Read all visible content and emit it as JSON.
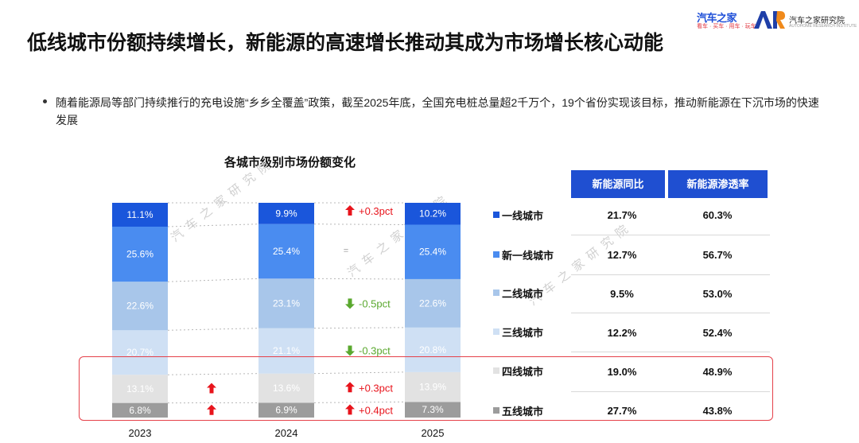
{
  "header": {
    "logo_left_text": "汽车之家",
    "logo_left_sub": "看车 · 买车 · 用车 · 玩车",
    "logo_right_text": "汽车之家研究院",
    "logo_right_sub": "AUTOHOME RESEARCH INSTITUTE"
  },
  "page_title": "低线城市份额持续增长，新能源的高速增长推动其成为市场增长核心动能",
  "bullet": "随着能源局等部门持续推行的充电设施“乡乡全覆盖”政策，截至2025年底，全国充电桩总量超2千万个，19个省份实现该目标，推动新能源在下沉市场的快速发展",
  "watermark": "汽车之家研究院",
  "colors": {
    "tier1": "#1a56db",
    "new_tier1": "#4a8cf0",
    "tier2": "#a8c6ea",
    "tier3": "#cfe0f4",
    "tier4": "#e2e2e2",
    "tier5": "#9c9c9c",
    "header_blue": "#1f4fd1",
    "arrow_up": "#e8141c",
    "arrow_down": "#5aa82e",
    "highlight": "#e5414a"
  },
  "chart_data": {
    "type": "bar",
    "stacked": true,
    "title": "各城市级别市场份额变化",
    "categories": [
      "2023",
      "2024",
      "2025"
    ],
    "series": [
      {
        "name": "一线城市",
        "values": [
          11.1,
          9.9,
          10.2
        ],
        "labels": [
          "11.1%",
          "9.9%",
          "10.2%"
        ],
        "color_key": "tier1"
      },
      {
        "name": "新一线城市",
        "values": [
          25.6,
          25.4,
          25.4
        ],
        "labels": [
          "25.6%",
          "25.4%",
          "25.4%"
        ],
        "color_key": "new_tier1"
      },
      {
        "name": "二线城市",
        "values": [
          22.6,
          23.1,
          22.6
        ],
        "labels": [
          "22.6%",
          "23.1%",
          "22.6%"
        ],
        "color_key": "tier2"
      },
      {
        "name": "三线城市",
        "values": [
          20.7,
          21.1,
          20.8
        ],
        "labels": [
          "20.7%",
          "21.1%",
          "20.8%"
        ],
        "color_key": "tier3"
      },
      {
        "name": "四线城市",
        "values": [
          13.1,
          13.6,
          13.9
        ],
        "labels": [
          "13.1%",
          "13.6%",
          "13.9%"
        ],
        "color_key": "tier4"
      },
      {
        "name": "五线城市",
        "values": [
          6.8,
          6.9,
          7.3
        ],
        "labels": [
          "6.8%",
          "6.9%",
          "7.3%"
        ],
        "color_key": "tier5"
      }
    ],
    "changes_2023_2024": [
      {
        "series": "四线城市",
        "direction": "up",
        "text": ""
      },
      {
        "series": "五线城市",
        "direction": "up",
        "text": ""
      }
    ],
    "changes_2024_2025": [
      {
        "series": "一线城市",
        "direction": "up",
        "text": "+0.3pct"
      },
      {
        "series": "新一线城市",
        "direction": "equal",
        "text": "="
      },
      {
        "series": "二线城市",
        "direction": "down",
        "text": "-0.5pct"
      },
      {
        "series": "三线城市",
        "direction": "down",
        "text": "-0.3pct"
      },
      {
        "series": "四线城市",
        "direction": "up",
        "text": "+0.3pct"
      },
      {
        "series": "五线城市",
        "direction": "up",
        "text": "+0.4pct"
      }
    ]
  },
  "table": {
    "headers": [
      "新能源同比",
      "新能源渗透率"
    ],
    "rows": [
      {
        "name": "一线城市",
        "yoy": "21.7%",
        "penetration": "60.3%",
        "color_key": "tier1"
      },
      {
        "name": "新一线城市",
        "yoy": "12.7%",
        "penetration": "56.7%",
        "color_key": "new_tier1"
      },
      {
        "name": "二线城市",
        "yoy": "9.5%",
        "penetration": "53.0%",
        "color_key": "tier2"
      },
      {
        "name": "三线城市",
        "yoy": "12.2%",
        "penetration": "52.4%",
        "color_key": "tier3"
      },
      {
        "name": "四线城市",
        "yoy": "19.0%",
        "penetration": "48.9%",
        "color_key": "tier4"
      },
      {
        "name": "五线城市",
        "yoy": "27.7%",
        "penetration": "43.8%",
        "color_key": "tier5"
      }
    ]
  }
}
